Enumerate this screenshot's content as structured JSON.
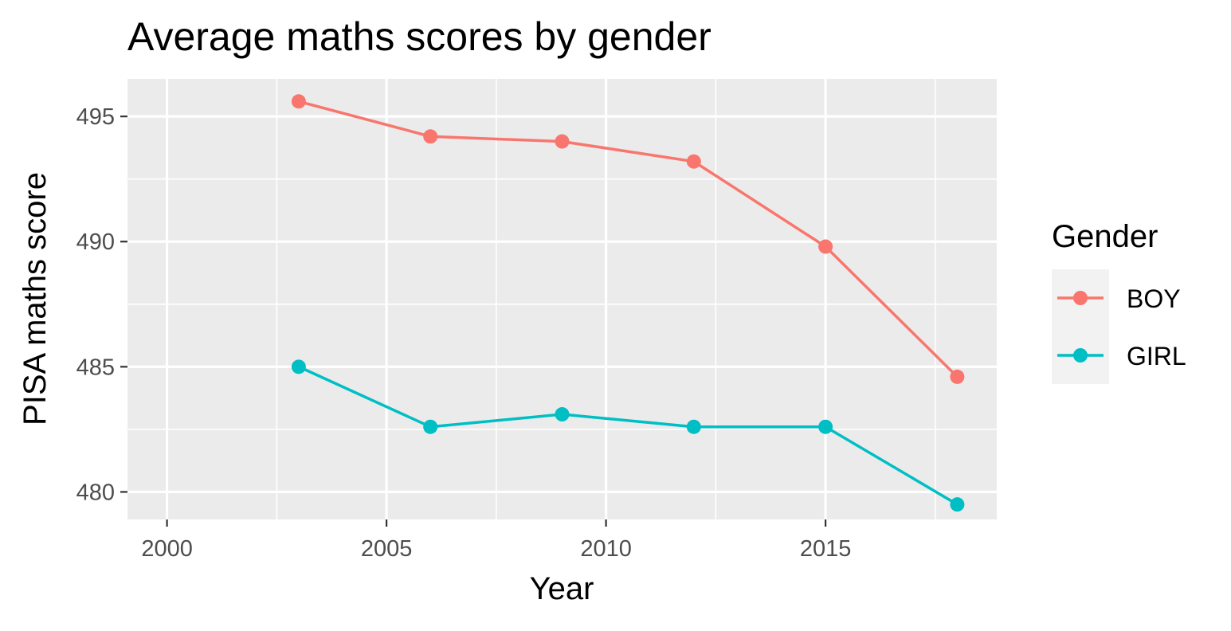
{
  "chart_data": {
    "type": "line",
    "title": "Average maths scores by gender",
    "xlabel": "Year",
    "ylabel": "PISA maths score",
    "xlim": [
      1999.1,
      2018.9
    ],
    "ylim": [
      478.9,
      496.5
    ],
    "x_major_ticks": [
      2000,
      2005,
      2010,
      2015
    ],
    "x_tick_labels": [
      "2000",
      "2005",
      "2010",
      "2015"
    ],
    "x_minor_ticks": [
      2002.5,
      2007.5,
      2012.5,
      2017.5
    ],
    "y_major_ticks": [
      480,
      485,
      490,
      495
    ],
    "y_tick_labels": [
      "480",
      "485",
      "490",
      "495"
    ],
    "y_minor_ticks": [
      482.5,
      487.5,
      492.5
    ],
    "grid": true,
    "panel_background": "#ebebeb",
    "legend": {
      "title": "Gender",
      "position": "right"
    },
    "x": [
      2003,
      2006,
      2009,
      2012,
      2015,
      2018
    ],
    "series": [
      {
        "name": "BOY",
        "color": "#f8766d",
        "values": [
          495.6,
          494.2,
          494.0,
          493.2,
          489.8,
          484.6
        ]
      },
      {
        "name": "GIRL",
        "color": "#00bfc4",
        "values": [
          485.0,
          482.6,
          483.1,
          482.6,
          482.6,
          479.5
        ]
      }
    ]
  }
}
